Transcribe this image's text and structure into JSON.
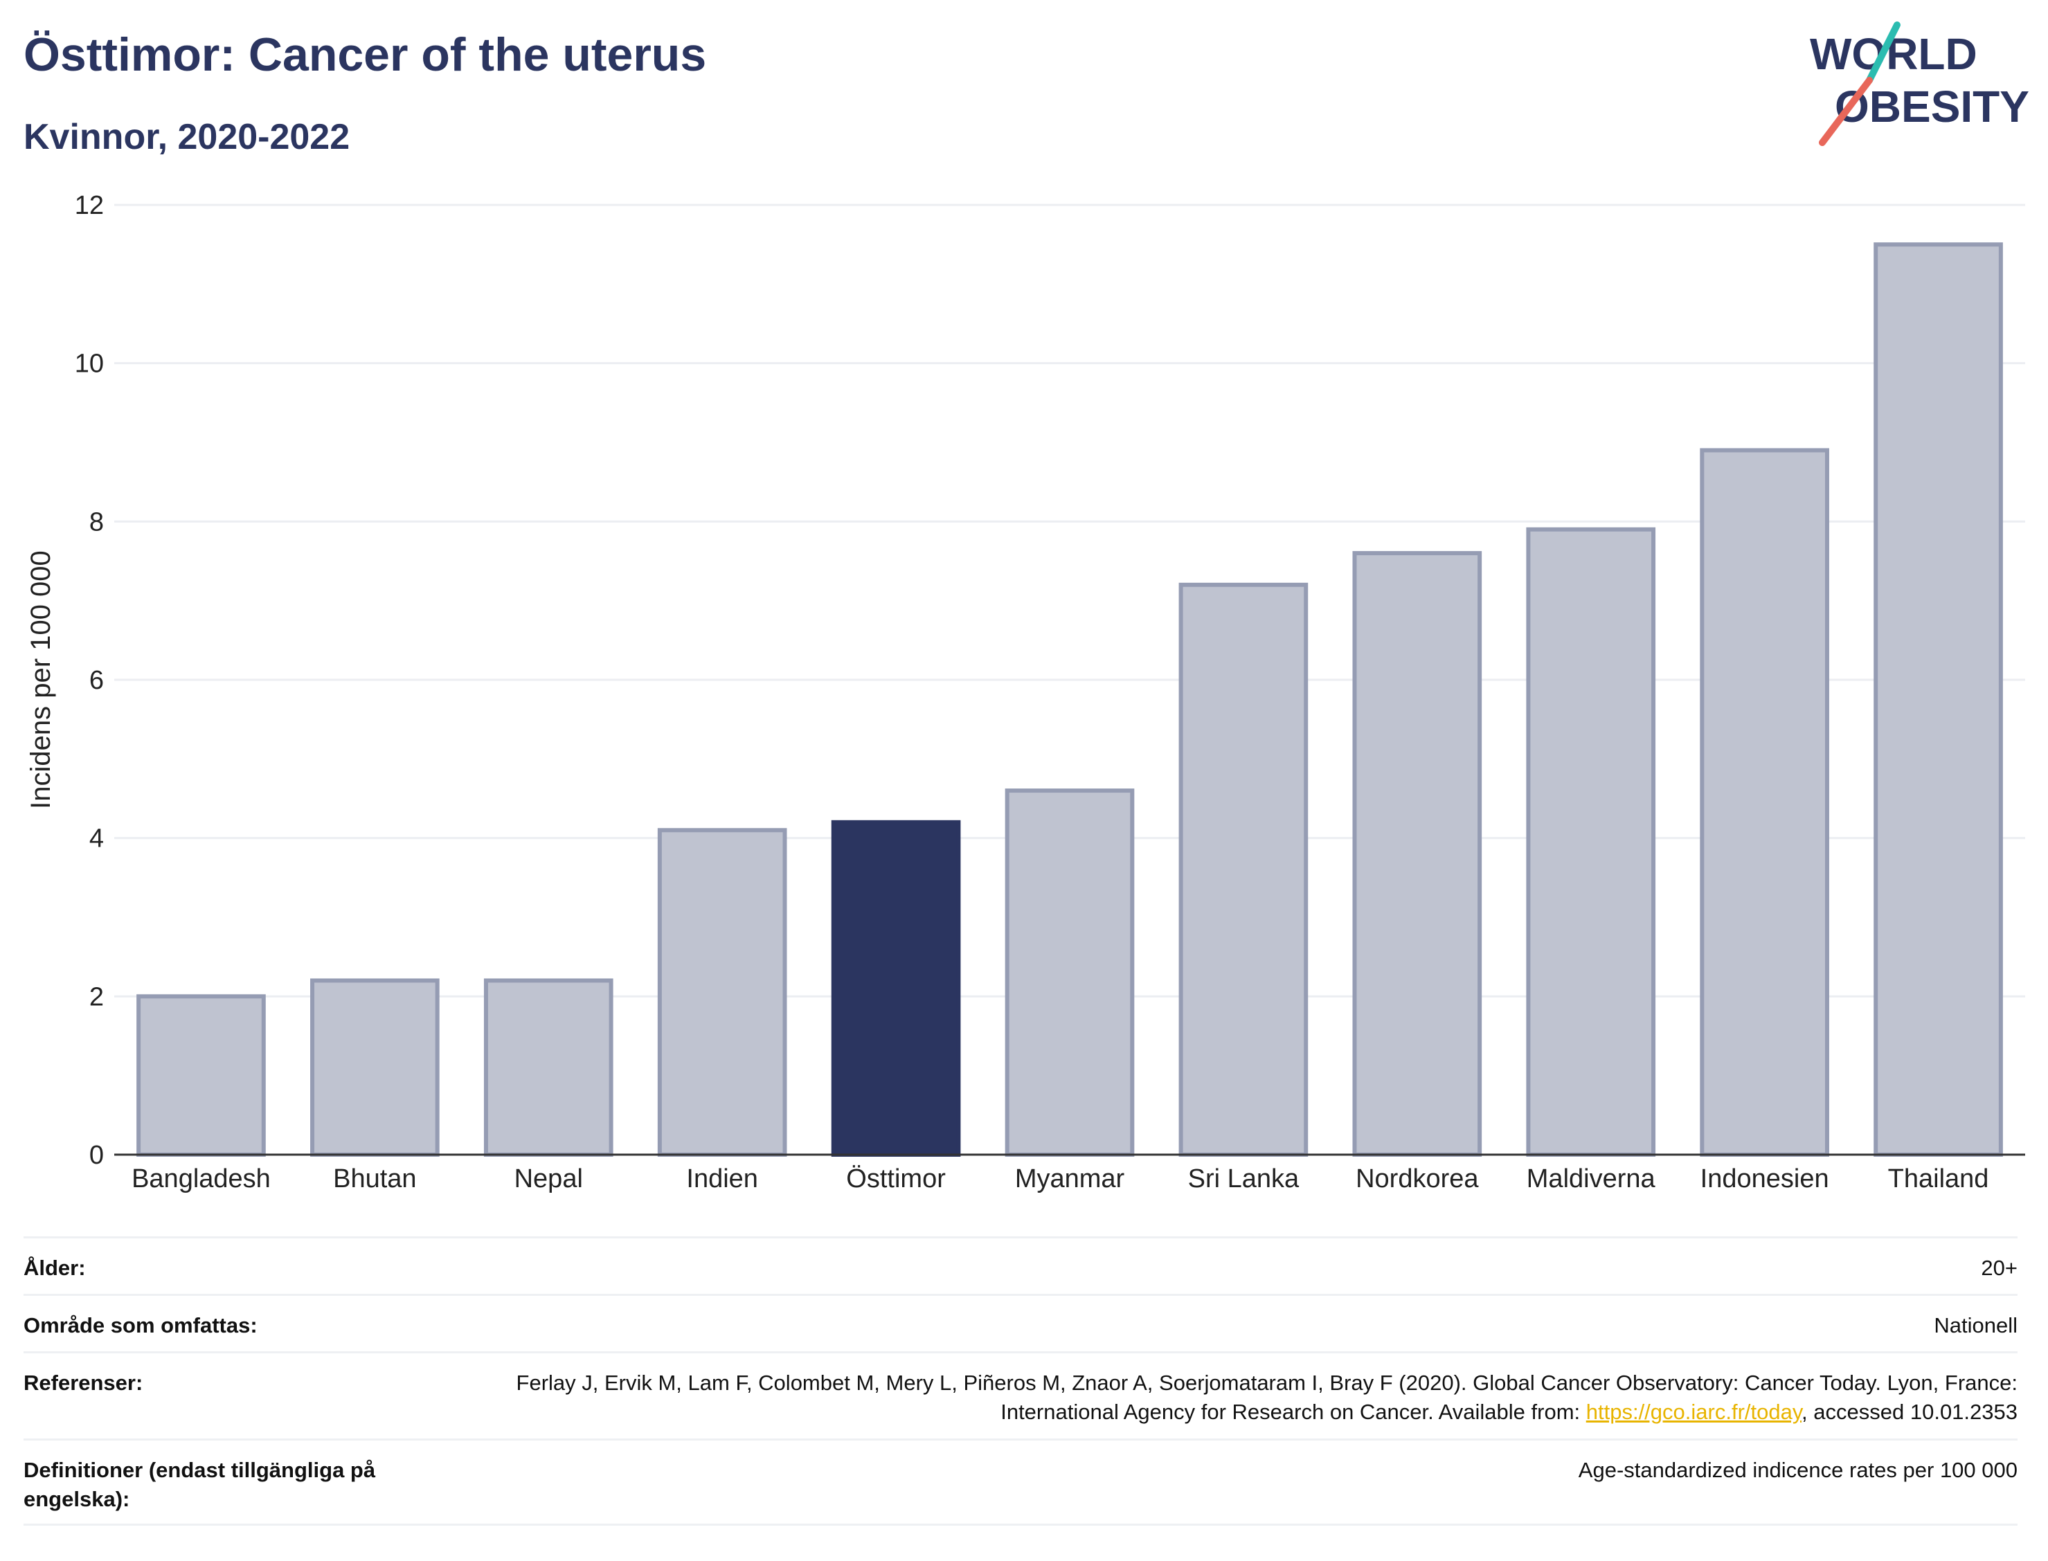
{
  "header": {
    "title": "Östtimor: Cancer of the uterus",
    "subtitle": "Kvinnor, 2020-2022"
  },
  "logo": {
    "line1": "WORLD",
    "line2": "OBESITY",
    "accent_colors": [
      "#2bbcb0",
      "#e8675a"
    ]
  },
  "colors": {
    "highlight": "#2b3560",
    "bar": "#bfc3d0",
    "bar_border": "#959cb3",
    "grid": "#eceef2"
  },
  "chart_data": {
    "type": "bar",
    "categories": [
      "Bangladesh",
      "Bhutan",
      "Nepal",
      "Indien",
      "Östtimor",
      "Myanmar",
      "Sri Lanka",
      "Nordkorea",
      "Maldiverna",
      "Indonesien",
      "Thailand"
    ],
    "values": [
      2.0,
      2.2,
      2.2,
      4.1,
      4.2,
      4.6,
      7.2,
      7.6,
      7.9,
      8.9,
      11.5
    ],
    "highlight": "Östtimor",
    "ylabel": "Incidens per 100 000",
    "ylim": [
      0,
      12
    ],
    "yticks": [
      0,
      2,
      4,
      6,
      8,
      10,
      12
    ],
    "grid": true
  },
  "meta": {
    "age_label": "Ålder:",
    "age_value": "20+",
    "area_label": "Område som omfattas:",
    "area_value": "Nationell",
    "ref_label": "Referenser:",
    "ref_text_before": "Ferlay J, Ervik M, Lam F, Colombet M, Mery L, Piñeros M, Znaor A, Soerjomataram I, Bray F (2020). Global Cancer Observatory: Cancer Today. Lyon, France: International Agency for Research on Cancer. Available from: ",
    "ref_link": "https://gco.iarc.fr/today",
    "ref_text_after": ", accessed 10.01.2353",
    "def_label": "Definitioner (endast tillgängliga på engelska):",
    "def_value": "Age-standardized indicence rates per 100 000"
  }
}
